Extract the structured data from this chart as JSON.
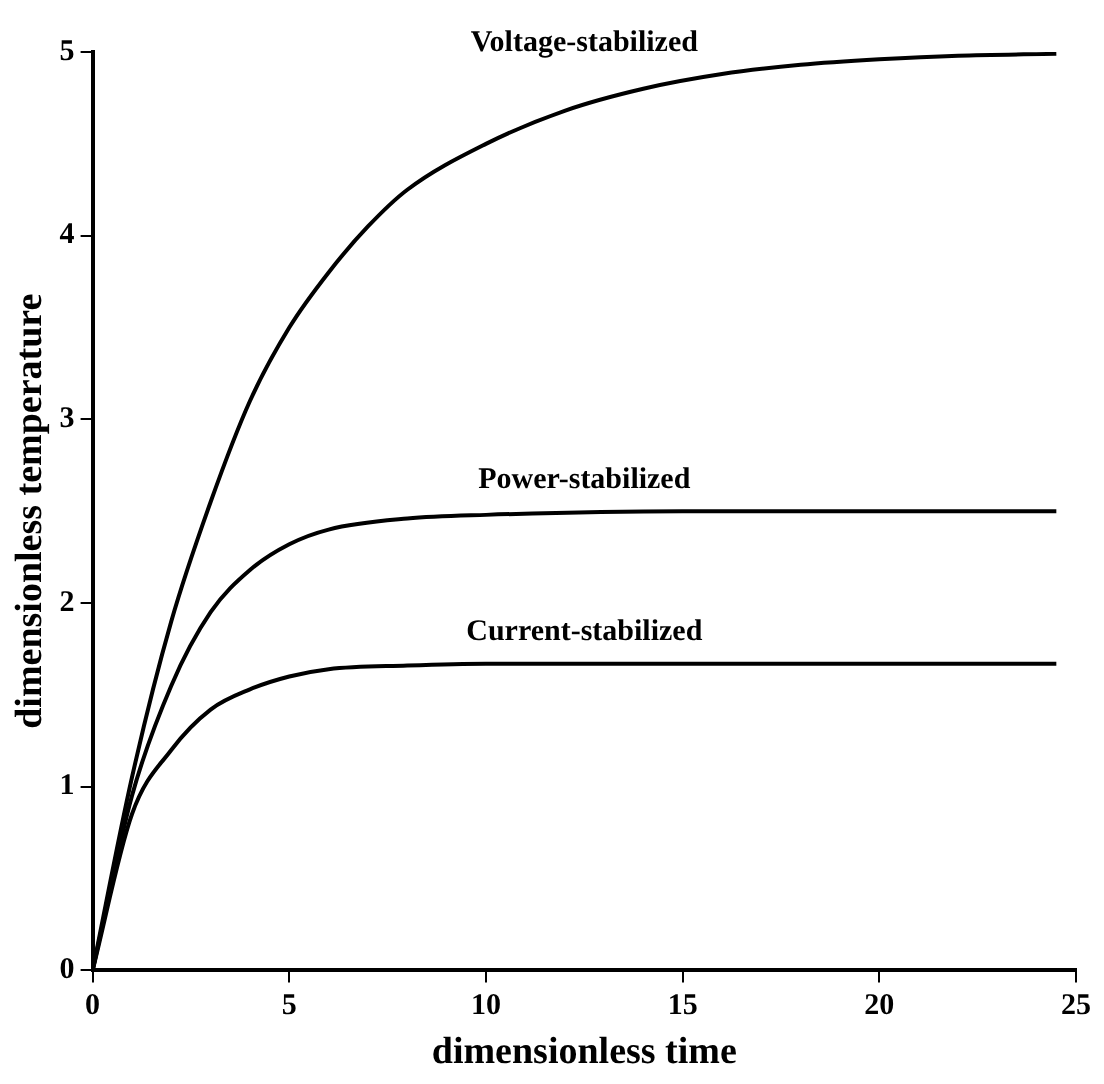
{
  "chart_data": {
    "type": "line",
    "xlabel": "dimensionless time",
    "ylabel": "dimensionless temperature",
    "xlim": [
      0,
      25
    ],
    "ylim": [
      0,
      5
    ],
    "xticks": [
      0,
      5,
      10,
      15,
      20,
      25
    ],
    "yticks": [
      0,
      1,
      2,
      3,
      4,
      5
    ],
    "grid": false,
    "legend": false,
    "marker": "none",
    "line_style": "solid",
    "series": [
      {
        "name": "Voltage-stabilized",
        "color": "#000000",
        "x": [
          0,
          1,
          2,
          3,
          4,
          5,
          6,
          7,
          8,
          10,
          12,
          14,
          16,
          18,
          20,
          22,
          24.5
        ],
        "values": [
          0,
          1.05,
          1.9,
          2.55,
          3.1,
          3.5,
          3.8,
          4.05,
          4.25,
          4.5,
          4.68,
          4.8,
          4.88,
          4.93,
          4.96,
          4.98,
          4.99
        ]
      },
      {
        "name": "Power-stabilized",
        "color": "#000000",
        "x": [
          0,
          1,
          2,
          3,
          4,
          5,
          6,
          8,
          10,
          15,
          24.5
        ],
        "values": [
          0,
          0.95,
          1.55,
          1.95,
          2.18,
          2.32,
          2.4,
          2.46,
          2.48,
          2.5,
          2.5
        ]
      },
      {
        "name": "Current-stabilized",
        "color": "#000000",
        "x": [
          0,
          1,
          2,
          3,
          4,
          5,
          6,
          8,
          10,
          24.5
        ],
        "values": [
          0,
          0.85,
          1.2,
          1.42,
          1.53,
          1.6,
          1.64,
          1.66,
          1.67,
          1.67
        ]
      }
    ]
  }
}
